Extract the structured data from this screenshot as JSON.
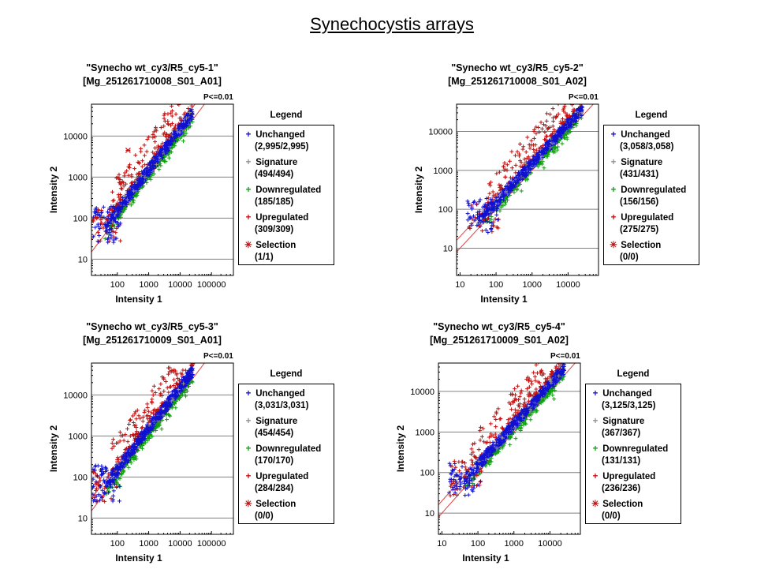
{
  "page_title": "Synechocystis arrays",
  "legend_title": "Legend",
  "pvalue_label": "P<=0.01",
  "colors": {
    "unchanged": "#1010d0",
    "signature": "#909090",
    "downregulated": "#10a010",
    "upregulated": "#c01010",
    "selection": "#c01010",
    "diag": "#e04040",
    "grid": "#808080"
  },
  "chart_data": [
    {
      "type": "scatter",
      "title_line1": "\"Synecho wt_cy3/R5_cy5-1\"",
      "title_line2": "[Mg_251261710008_S01_A01]",
      "xlabel": "Intensity 1",
      "ylabel": "Intensity 2",
      "x_scale": "log",
      "y_scale": "log",
      "xlim": [
        15,
        500000
      ],
      "ylim": [
        4,
        60000
      ],
      "x_ticks": [
        "100",
        "1000",
        "10000",
        "100000"
      ],
      "y_ticks": [
        "10",
        "100",
        "1000",
        "10000"
      ],
      "series": [
        {
          "name": "Unchanged",
          "count": "(2,995/2,995)"
        },
        {
          "name": "Signature",
          "count": "(494/494)"
        },
        {
          "name": "Downregulated",
          "count": "(185/185)"
        },
        {
          "name": "Upregulated",
          "count": "(309/309)"
        },
        {
          "name": "Selection",
          "count": "(1/1)"
        }
      ],
      "selection_points": [
        {
          "x": 220,
          "y": 4500
        }
      ]
    },
    {
      "type": "scatter",
      "title_line1": "\"Synecho wt_cy3/R5_cy5-2\"",
      "title_line2": "[Mg_251261710008_S01_A02]",
      "xlabel": "Intensity 1",
      "ylabel": "Intensity 2",
      "x_scale": "log",
      "y_scale": "log",
      "xlim": [
        8,
        70000
      ],
      "ylim": [
        2,
        50000
      ],
      "x_ticks": [
        "10",
        "100",
        "1000",
        "10000"
      ],
      "y_ticks": [
        "10",
        "100",
        "1000",
        "10000"
      ],
      "series": [
        {
          "name": "Unchanged",
          "count": "(3,058/3,058)"
        },
        {
          "name": "Signature",
          "count": "(431/431)"
        },
        {
          "name": "Downregulated",
          "count": "(156/156)"
        },
        {
          "name": "Upregulated",
          "count": "(275/275)"
        },
        {
          "name": "Selection",
          "count": "(0/0)"
        }
      ],
      "selection_points": []
    },
    {
      "type": "scatter",
      "title_line1": "\"Synecho wt_cy3/R5_cy5-3\"",
      "title_line2": "[Mg_251261710009_S01_A01]",
      "xlabel": "Intensity 1",
      "ylabel": "Intensity 2",
      "x_scale": "log",
      "y_scale": "log",
      "xlim": [
        15,
        500000
      ],
      "ylim": [
        4,
        60000
      ],
      "x_ticks": [
        "100",
        "1000",
        "10000",
        "100000"
      ],
      "y_ticks": [
        "10",
        "100",
        "1000",
        "10000"
      ],
      "series": [
        {
          "name": "Unchanged",
          "count": "(3,031/3,031)"
        },
        {
          "name": "Signature",
          "count": "(454/454)"
        },
        {
          "name": "Downregulated",
          "count": "(170/170)"
        },
        {
          "name": "Upregulated",
          "count": "(284/284)"
        },
        {
          "name": "Selection",
          "count": "(0/0)"
        }
      ],
      "selection_points": []
    },
    {
      "type": "scatter",
      "title_line1": "\"Synecho wt_cy3/R5_cy5-4\"",
      "title_line2": "[Mg_251261710009_S01_A02]",
      "xlabel": "Intensity 1",
      "ylabel": "Intensity 2",
      "x_scale": "log",
      "y_scale": "log",
      "xlim": [
        8,
        70000
      ],
      "ylim": [
        3,
        50000
      ],
      "x_ticks": [
        "10",
        "100",
        "1000",
        "10000"
      ],
      "y_ticks": [
        "10",
        "100",
        "1000",
        "10000"
      ],
      "series": [
        {
          "name": "Unchanged",
          "count": "(3,125/3,125)"
        },
        {
          "name": "Signature",
          "count": "(367/367)"
        },
        {
          "name": "Downregulated",
          "count": "(131/131)"
        },
        {
          "name": "Upregulated",
          "count": "(236/236)"
        },
        {
          "name": "Selection",
          "count": "(0/0)"
        }
      ],
      "selection_points": []
    }
  ]
}
